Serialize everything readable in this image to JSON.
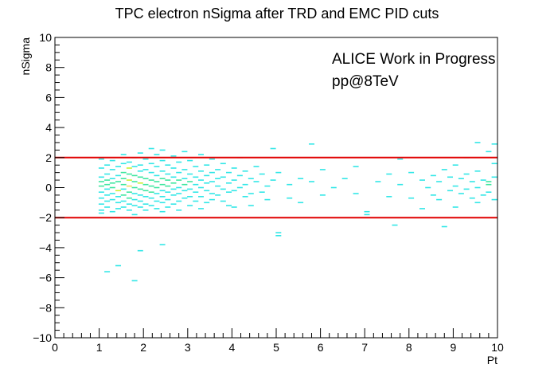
{
  "chart_data": {
    "type": "heatmap",
    "title": "TPC electron nSigma after TRD and EMC PID cuts",
    "xlabel": "Pt",
    "ylabel": "nSigma",
    "xlim": [
      0,
      10
    ],
    "ylim": [
      -10,
      10
    ],
    "x_ticks": [
      0,
      1,
      2,
      3,
      4,
      5,
      6,
      7,
      8,
      9,
      10
    ],
    "y_ticks": [
      -10,
      -8,
      -6,
      -4,
      -2,
      0,
      2,
      4,
      6,
      8,
      10
    ],
    "x_tick_labels": [
      "0",
      "1",
      "2",
      "3",
      "4",
      "5",
      "6",
      "7",
      "8",
      "9",
      "10"
    ],
    "y_tick_labels": [
      "−10",
      "−8",
      "−6",
      "−4",
      "−2",
      "0",
      "2",
      "4",
      "6",
      "8",
      "10"
    ],
    "grid": false,
    "bin_width": [
      0.125,
      0.08
    ],
    "annotations": [
      "ALICE Work in Progress",
      "pp@8TeV"
    ],
    "cut_lines": [
      {
        "y": 2,
        "color": "#e00000"
      },
      {
        "y": -2,
        "color": "#e00000"
      }
    ],
    "colors": {
      "low": "#33e7e7",
      "mid": "#3fe6a0",
      "high": "#c8f032",
      "max": "#f0e060"
    },
    "cells": [
      [
        1.05,
        1.9,
        1
      ],
      [
        1.05,
        1.3,
        1
      ],
      [
        1.05,
        0.7,
        1
      ],
      [
        1.05,
        0.4,
        2
      ],
      [
        1.05,
        0.1,
        2
      ],
      [
        1.05,
        -0.3,
        1
      ],
      [
        1.05,
        -0.7,
        1
      ],
      [
        1.05,
        -1.1,
        1
      ],
      [
        1.05,
        -1.5,
        1
      ],
      [
        1.05,
        -1.7,
        1
      ],
      [
        1.18,
        1.5,
        1
      ],
      [
        1.18,
        0.9,
        1
      ],
      [
        1.18,
        0.5,
        2
      ],
      [
        1.18,
        0.2,
        2
      ],
      [
        1.18,
        -0.1,
        1
      ],
      [
        1.18,
        -0.5,
        1
      ],
      [
        1.18,
        -0.9,
        1
      ],
      [
        1.18,
        -1.3,
        1
      ],
      [
        1.18,
        -5.6,
        1
      ],
      [
        1.3,
        1.8,
        1
      ],
      [
        1.3,
        1.2,
        1
      ],
      [
        1.3,
        0.6,
        1
      ],
      [
        1.3,
        0.3,
        2
      ],
      [
        1.3,
        0.0,
        2
      ],
      [
        1.3,
        -0.4,
        1
      ],
      [
        1.3,
        -0.8,
        1
      ],
      [
        1.3,
        -1.6,
        1
      ],
      [
        1.43,
        1.4,
        1
      ],
      [
        1.43,
        0.8,
        1
      ],
      [
        1.43,
        0.4,
        2
      ],
      [
        1.43,
        -0.2,
        3
      ],
      [
        1.43,
        -0.6,
        1
      ],
      [
        1.43,
        -1.0,
        1
      ],
      [
        1.43,
        -1.4,
        1
      ],
      [
        1.43,
        -5.2,
        1
      ],
      [
        1.55,
        2.2,
        1
      ],
      [
        1.55,
        1.6,
        1
      ],
      [
        1.55,
        1.0,
        2
      ],
      [
        1.55,
        0.6,
        2
      ],
      [
        1.55,
        0.2,
        2
      ],
      [
        1.55,
        -0.1,
        1
      ],
      [
        1.55,
        -0.5,
        2
      ],
      [
        1.55,
        -0.9,
        1
      ],
      [
        1.55,
        -1.3,
        1
      ],
      [
        1.68,
        1.7,
        1
      ],
      [
        1.68,
        1.3,
        3
      ],
      [
        1.68,
        0.9,
        2
      ],
      [
        1.68,
        0.5,
        3
      ],
      [
        1.68,
        0.1,
        4
      ],
      [
        1.68,
        -0.3,
        2
      ],
      [
        1.68,
        -0.7,
        2
      ],
      [
        1.68,
        -1.1,
        1
      ],
      [
        1.68,
        -1.5,
        1
      ],
      [
        1.8,
        2.0,
        1
      ],
      [
        1.8,
        1.4,
        1
      ],
      [
        1.8,
        0.8,
        2
      ],
      [
        1.8,
        0.4,
        2
      ],
      [
        1.8,
        0.0,
        2
      ],
      [
        1.8,
        -0.4,
        1
      ],
      [
        1.8,
        -0.8,
        1
      ],
      [
        1.8,
        -1.2,
        1
      ],
      [
        1.8,
        -1.8,
        1
      ],
      [
        1.8,
        -6.2,
        1
      ],
      [
        1.93,
        2.3,
        1
      ],
      [
        1.93,
        1.5,
        1
      ],
      [
        1.93,
        1.1,
        1
      ],
      [
        1.93,
        0.7,
        2
      ],
      [
        1.93,
        0.3,
        3
      ],
      [
        1.93,
        -0.1,
        2
      ],
      [
        1.93,
        -0.5,
        1
      ],
      [
        1.93,
        -0.9,
        1
      ],
      [
        1.93,
        -1.3,
        1
      ],
      [
        1.93,
        -2.0,
        1
      ],
      [
        1.93,
        -4.2,
        1
      ],
      [
        2.05,
        1.9,
        1
      ],
      [
        2.05,
        1.2,
        1
      ],
      [
        2.05,
        0.6,
        2
      ],
      [
        2.05,
        0.2,
        2
      ],
      [
        2.05,
        -0.2,
        2
      ],
      [
        2.05,
        -0.6,
        1
      ],
      [
        2.05,
        -1.1,
        1
      ],
      [
        2.05,
        -1.5,
        1
      ],
      [
        2.18,
        2.6,
        1
      ],
      [
        2.18,
        1.6,
        1
      ],
      [
        2.18,
        1.0,
        1
      ],
      [
        2.18,
        0.5,
        2
      ],
      [
        2.18,
        0.1,
        2
      ],
      [
        2.18,
        -0.3,
        2
      ],
      [
        2.18,
        -0.7,
        1
      ],
      [
        2.18,
        -1.2,
        1
      ],
      [
        2.3,
        2.2,
        1
      ],
      [
        2.3,
        1.4,
        1
      ],
      [
        2.3,
        0.8,
        1
      ],
      [
        2.3,
        0.4,
        2
      ],
      [
        2.3,
        0.0,
        2
      ],
      [
        2.3,
        -0.4,
        1
      ],
      [
        2.3,
        -0.9,
        1
      ],
      [
        2.3,
        -1.4,
        1
      ],
      [
        2.43,
        2.5,
        1
      ],
      [
        2.43,
        1.8,
        1
      ],
      [
        2.43,
        1.1,
        1
      ],
      [
        2.43,
        0.6,
        2
      ],
      [
        2.43,
        0.2,
        2
      ],
      [
        2.43,
        -0.2,
        1
      ],
      [
        2.43,
        -0.6,
        1
      ],
      [
        2.43,
        -1.0,
        1
      ],
      [
        2.43,
        -1.6,
        1
      ],
      [
        2.43,
        -3.8,
        1
      ],
      [
        2.55,
        1.5,
        1
      ],
      [
        2.55,
        0.9,
        1
      ],
      [
        2.55,
        0.5,
        2
      ],
      [
        2.55,
        0.1,
        2
      ],
      [
        2.55,
        -0.3,
        1
      ],
      [
        2.55,
        -0.8,
        1
      ],
      [
        2.55,
        -1.3,
        1
      ],
      [
        2.68,
        2.1,
        1
      ],
      [
        2.68,
        1.3,
        1
      ],
      [
        2.68,
        0.7,
        1
      ],
      [
        2.68,
        0.3,
        2
      ],
      [
        2.68,
        -0.1,
        1
      ],
      [
        2.68,
        -0.5,
        1
      ],
      [
        2.68,
        -1.1,
        1
      ],
      [
        2.8,
        1.7,
        1
      ],
      [
        2.8,
        1.0,
        1
      ],
      [
        2.8,
        0.5,
        2
      ],
      [
        2.8,
        0.0,
        1
      ],
      [
        2.8,
        -0.4,
        1
      ],
      [
        2.8,
        -0.9,
        1
      ],
      [
        2.8,
        -1.5,
        1
      ],
      [
        2.93,
        2.4,
        1
      ],
      [
        2.93,
        1.2,
        1
      ],
      [
        2.93,
        0.6,
        1
      ],
      [
        2.93,
        0.2,
        2
      ],
      [
        2.93,
        -0.2,
        1
      ],
      [
        2.93,
        -0.7,
        1
      ],
      [
        3.05,
        1.8,
        1
      ],
      [
        3.05,
        0.9,
        1
      ],
      [
        3.05,
        0.4,
        2
      ],
      [
        3.05,
        -0.1,
        1
      ],
      [
        3.05,
        -0.6,
        1
      ],
      [
        3.05,
        -1.2,
        1
      ],
      [
        3.18,
        1.4,
        1
      ],
      [
        3.18,
        0.7,
        1
      ],
      [
        3.18,
        0.2,
        1
      ],
      [
        3.18,
        -0.3,
        1
      ],
      [
        3.18,
        -0.9,
        1
      ],
      [
        3.3,
        2.2,
        1
      ],
      [
        3.3,
        1.1,
        1
      ],
      [
        3.3,
        0.5,
        1
      ],
      [
        3.3,
        0.0,
        1
      ],
      [
        3.3,
        -0.6,
        1
      ],
      [
        3.3,
        -1.4,
        1
      ],
      [
        3.43,
        1.5,
        1
      ],
      [
        3.43,
        0.8,
        1
      ],
      [
        3.43,
        0.3,
        1
      ],
      [
        3.43,
        -0.2,
        1
      ],
      [
        3.43,
        -1.0,
        1
      ],
      [
        3.55,
        1.9,
        1
      ],
      [
        3.55,
        1.0,
        1
      ],
      [
        3.55,
        0.4,
        1
      ],
      [
        3.55,
        -0.4,
        1
      ],
      [
        3.55,
        -0.8,
        1
      ],
      [
        3.68,
        1.2,
        1
      ],
      [
        3.68,
        0.6,
        1
      ],
      [
        3.68,
        0.1,
        1
      ],
      [
        3.68,
        -0.5,
        1
      ],
      [
        3.8,
        1.6,
        1
      ],
      [
        3.8,
        0.7,
        1
      ],
      [
        3.8,
        -0.1,
        1
      ],
      [
        3.8,
        -0.9,
        1
      ],
      [
        3.93,
        1.0,
        1
      ],
      [
        3.93,
        0.3,
        1
      ],
      [
        3.93,
        -0.3,
        1
      ],
      [
        3.93,
        -1.2,
        1
      ],
      [
        4.05,
        1.3,
        1
      ],
      [
        4.05,
        0.5,
        1
      ],
      [
        4.05,
        -0.2,
        1
      ],
      [
        4.05,
        -1.3,
        1
      ],
      [
        4.18,
        2.0,
        1
      ],
      [
        4.18,
        0.8,
        1
      ],
      [
        4.18,
        0.0,
        1
      ],
      [
        4.3,
        1.1,
        1
      ],
      [
        4.3,
        0.2,
        1
      ],
      [
        4.3,
        -0.6,
        1
      ],
      [
        4.43,
        0.6,
        1
      ],
      [
        4.43,
        -0.4,
        1
      ],
      [
        4.43,
        -1.2,
        1
      ],
      [
        4.55,
        1.4,
        1
      ],
      [
        4.55,
        0.4,
        1
      ],
      [
        4.68,
        0.9,
        1
      ],
      [
        4.68,
        -0.3,
        1
      ],
      [
        4.8,
        0.1,
        1
      ],
      [
        4.8,
        -0.8,
        1
      ],
      [
        4.93,
        2.6,
        1
      ],
      [
        4.93,
        0.5,
        1
      ],
      [
        5.05,
        1.0,
        1
      ],
      [
        5.05,
        -3.0,
        1
      ],
      [
        5.05,
        -3.2,
        1
      ],
      [
        5.3,
        0.2,
        1
      ],
      [
        5.3,
        -0.7,
        1
      ],
      [
        5.55,
        0.6,
        1
      ],
      [
        5.55,
        -1.0,
        1
      ],
      [
        5.8,
        2.9,
        1
      ],
      [
        5.8,
        0.4,
        1
      ],
      [
        6.05,
        1.2,
        1
      ],
      [
        6.05,
        -0.5,
        1
      ],
      [
        6.3,
        0.0,
        1
      ],
      [
        6.55,
        0.6,
        1
      ],
      [
        6.8,
        1.4,
        1
      ],
      [
        6.8,
        -0.4,
        1
      ],
      [
        7.05,
        -1.6,
        1
      ],
      [
        7.05,
        -1.8,
        1
      ],
      [
        7.3,
        0.4,
        1
      ],
      [
        7.55,
        0.9,
        1
      ],
      [
        7.55,
        -0.6,
        1
      ],
      [
        7.68,
        -2.5,
        1
      ],
      [
        7.8,
        1.9,
        1
      ],
      [
        7.8,
        0.2,
        1
      ],
      [
        8.05,
        1.0,
        1
      ],
      [
        8.05,
        -0.7,
        1
      ],
      [
        8.3,
        0.5,
        1
      ],
      [
        8.3,
        -1.4,
        1
      ],
      [
        8.43,
        0.0,
        1
      ],
      [
        8.55,
        0.8,
        1
      ],
      [
        8.55,
        -0.5,
        1
      ],
      [
        8.68,
        0.4,
        1
      ],
      [
        8.68,
        -0.8,
        1
      ],
      [
        8.8,
        -2.6,
        1
      ],
      [
        8.8,
        1.2,
        1
      ],
      [
        8.93,
        0.7,
        1
      ],
      [
        8.93,
        -0.2,
        1
      ],
      [
        9.05,
        1.5,
        1
      ],
      [
        9.05,
        0.1,
        1
      ],
      [
        9.05,
        -1.3,
        1
      ],
      [
        9.18,
        0.6,
        1
      ],
      [
        9.18,
        -0.4,
        1
      ],
      [
        9.3,
        2.0,
        1
      ],
      [
        9.3,
        0.9,
        1
      ],
      [
        9.3,
        -0.1,
        1
      ],
      [
        9.43,
        0.4,
        1
      ],
      [
        9.43,
        -0.7,
        1
      ],
      [
        9.55,
        3.0,
        1
      ],
      [
        9.55,
        1.1,
        1
      ],
      [
        9.55,
        0.0,
        1
      ],
      [
        9.55,
        -1.0,
        1
      ],
      [
        9.68,
        0.5,
        1
      ],
      [
        9.68,
        -0.5,
        1
      ],
      [
        9.8,
        2.4,
        1
      ],
      [
        9.8,
        0.4,
        2
      ],
      [
        9.8,
        0.2,
        2
      ],
      [
        9.8,
        -0.3,
        1
      ],
      [
        9.93,
        2.9,
        1
      ],
      [
        9.93,
        1.6,
        1
      ],
      [
        9.93,
        0.7,
        1
      ],
      [
        9.93,
        -0.8,
        1
      ]
    ]
  }
}
